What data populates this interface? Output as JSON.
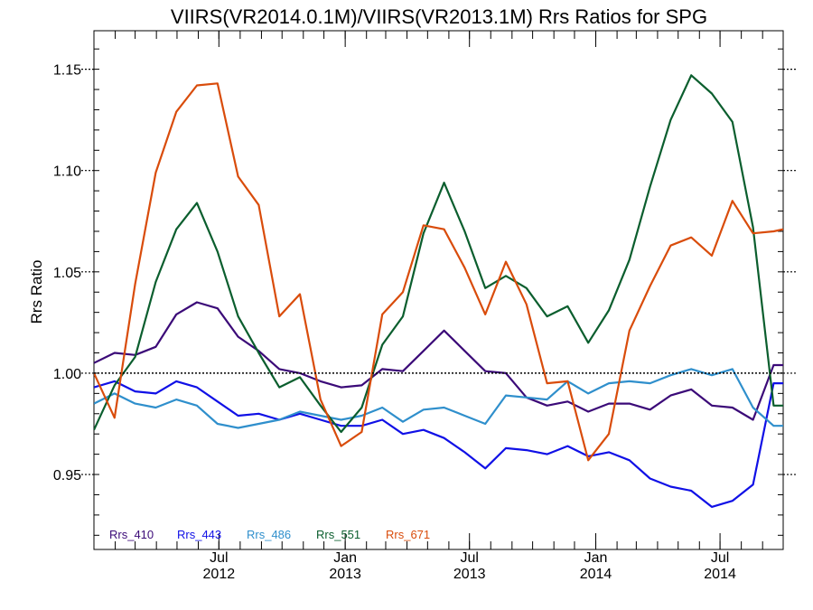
{
  "chart_data": {
    "type": "line",
    "title": "VIIRS(VR2014.0.1M)/VIIRS(VR2013.1M)  Rrs Ratios for SPG",
    "ylabel": "Rrs Ratio",
    "xlabel": "",
    "xlim": [
      "2012-01-01",
      "2014-10-01"
    ],
    "ylim": [
      0.913,
      1.169
    ],
    "yticks": [
      {
        "value": 0.95,
        "label": "0.95"
      },
      {
        "value": 1.0,
        "label": "1.00"
      },
      {
        "value": 1.05,
        "label": "1.05"
      },
      {
        "value": 1.1,
        "label": "1.10"
      },
      {
        "value": 1.15,
        "label": "1.15"
      }
    ],
    "xticks": [
      {
        "date": "2012-07-01",
        "month": "Jul",
        "year": "2012"
      },
      {
        "date": "2013-01-01",
        "month": "Jan",
        "year": "2013"
      },
      {
        "date": "2013-07-01",
        "month": "Jul",
        "year": "2013"
      },
      {
        "date": "2014-01-01",
        "month": "Jan",
        "year": "2014"
      },
      {
        "date": "2014-07-01",
        "month": "Jul",
        "year": "2014"
      }
    ],
    "reference_line": 1.0,
    "x": [
      "2012-01-01",
      "2012-01-31",
      "2012-03-01",
      "2012-03-31",
      "2012-04-30",
      "2012-05-30",
      "2012-06-29",
      "2012-07-29",
      "2012-08-28",
      "2012-09-27",
      "2012-10-27",
      "2012-11-26",
      "2012-12-26",
      "2013-01-25",
      "2013-02-24",
      "2013-03-26",
      "2013-04-25",
      "2013-05-25",
      "2013-06-24",
      "2013-07-24",
      "2013-08-23",
      "2013-09-22",
      "2013-10-22",
      "2013-11-21",
      "2013-12-21",
      "2014-01-20",
      "2014-02-19",
      "2014-03-21",
      "2014-04-20",
      "2014-05-20",
      "2014-06-19",
      "2014-07-19",
      "2014-08-18",
      "2014-09-17",
      "2014-10-01"
    ],
    "series": [
      {
        "name": "Rrs_410",
        "color": "#3b0a78",
        "values": [
          1.005,
          1.01,
          1.009,
          1.013,
          1.029,
          1.035,
          1.032,
          1.018,
          1.011,
          1.002,
          1.0,
          0.996,
          0.993,
          0.994,
          1.002,
          1.001,
          1.011,
          1.021,
          1.011,
          1.001,
          1.0,
          0.988,
          0.984,
          0.986,
          0.981,
          0.985,
          0.985,
          0.982,
          0.989,
          0.992,
          0.984,
          0.983,
          0.977,
          1.004,
          1.004
        ]
      },
      {
        "name": "Rrs_443",
        "color": "#1010e6",
        "values": [
          0.993,
          0.996,
          0.991,
          0.99,
          0.996,
          0.993,
          0.986,
          0.979,
          0.98,
          0.977,
          0.98,
          0.977,
          0.974,
          0.974,
          0.977,
          0.97,
          0.972,
          0.968,
          0.961,
          0.953,
          0.963,
          0.962,
          0.96,
          0.964,
          0.959,
          0.961,
          0.957,
          0.948,
          0.944,
          0.942,
          0.934,
          0.937,
          0.945,
          0.995,
          0.995
        ]
      },
      {
        "name": "Rrs_486",
        "color": "#2f8fcc",
        "values": [
          0.985,
          0.99,
          0.985,
          0.983,
          0.987,
          0.984,
          0.975,
          0.973,
          0.975,
          0.977,
          0.981,
          0.979,
          0.977,
          0.979,
          0.983,
          0.976,
          0.982,
          0.983,
          0.979,
          0.975,
          0.989,
          0.988,
          0.987,
          0.996,
          0.99,
          0.995,
          0.996,
          0.995,
          0.999,
          1.002,
          0.999,
          1.002,
          0.983,
          0.974,
          0.974
        ]
      },
      {
        "name": "Rrs_551",
        "color": "#0b5e2e",
        "values": [
          0.972,
          0.994,
          1.008,
          1.045,
          1.071,
          1.084,
          1.06,
          1.028,
          1.01,
          0.993,
          0.998,
          0.984,
          0.971,
          0.983,
          1.014,
          1.028,
          1.069,
          1.094,
          1.07,
          1.042,
          1.048,
          1.042,
          1.028,
          1.033,
          1.015,
          1.031,
          1.056,
          1.092,
          1.125,
          1.147,
          1.138,
          1.124,
          1.072,
          0.984,
          0.984
        ]
      },
      {
        "name": "Rrs_671",
        "color": "#d94c0b",
        "values": [
          1.0,
          0.978,
          1.044,
          1.099,
          1.129,
          1.142,
          1.143,
          1.097,
          1.083,
          1.028,
          1.039,
          0.987,
          0.964,
          0.971,
          1.029,
          1.04,
          1.073,
          1.071,
          1.052,
          1.029,
          1.055,
          1.034,
          0.995,
          0.996,
          0.957,
          0.97,
          1.021,
          1.043,
          1.063,
          1.067,
          1.058,
          1.085,
          1.069,
          1.07,
          1.071
        ]
      }
    ]
  }
}
